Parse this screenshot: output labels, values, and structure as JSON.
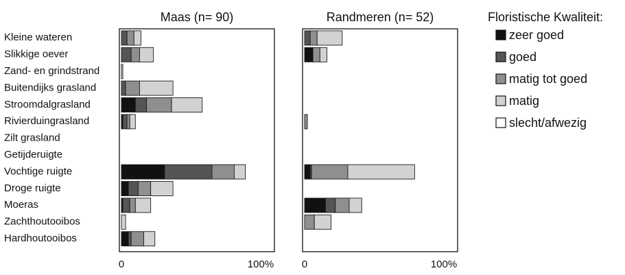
{
  "chart_data": {
    "type": "bar",
    "orientation": "horizontal",
    "stacked": true,
    "categories": [
      "Kleine wateren",
      "Slikkige oever",
      "Zand- en grindstrand",
      "Buitendijks grasland",
      "Stroomdalgrasland",
      "Rivierduingrasland",
      "Zilt grasland",
      "Getijderuigte",
      "Vochtige ruigte",
      "Droge ruigte",
      "Moeras",
      "Zachthoutooibos",
      "Hardhoutooibos"
    ],
    "legend": {
      "title": "Floristische Kwaliteit:",
      "placement": "right",
      "entries": [
        {
          "label": "zeer goed",
          "color": "#111111"
        },
        {
          "label": "goed",
          "color": "#555555"
        },
        {
          "label": "matig tot goed",
          "color": "#8f8f8f"
        },
        {
          "label": "matig",
          "color": "#d2d2d2"
        },
        {
          "label": "slecht/afwezig",
          "color": "#ffffff"
        }
      ]
    },
    "panels": [
      {
        "title": "Maas (n= 90)",
        "xlim": [
          0,
          100
        ],
        "xticks": [
          "0",
          "100%"
        ],
        "values": [
          [
            0,
            4,
            5,
            5,
            0
          ],
          [
            0,
            7,
            6,
            10,
            0
          ],
          [
            0,
            0,
            0,
            1,
            0
          ],
          [
            0,
            3,
            10,
            24,
            0
          ],
          [
            10,
            8,
            18,
            22,
            0
          ],
          [
            1,
            3,
            2,
            4,
            0
          ],
          [
            0,
            0,
            0,
            0,
            0
          ],
          [
            0,
            0,
            0,
            0,
            0
          ],
          [
            31,
            34,
            16,
            8,
            0
          ],
          [
            5,
            7,
            9,
            16,
            0
          ],
          [
            1,
            5,
            4,
            11,
            0
          ],
          [
            0,
            0,
            0,
            3,
            0
          ],
          [
            5,
            2,
            9,
            8,
            0
          ]
        ]
      },
      {
        "title": "Randmeren (n= 52)",
        "xlim": [
          0,
          100
        ],
        "xticks": [
          "0",
          "100%"
        ],
        "values": [
          [
            0,
            4,
            5,
            18,
            0
          ],
          [
            6,
            0,
            5,
            5,
            0
          ],
          [
            0,
            0,
            0,
            0,
            0
          ],
          [
            0,
            0,
            0,
            0,
            0
          ],
          [
            0,
            0,
            0,
            0,
            0
          ],
          [
            0,
            0,
            2,
            0,
            0
          ],
          [
            0,
            0,
            0,
            0,
            0
          ],
          [
            0,
            0,
            0,
            0,
            0
          ],
          [
            4,
            1,
            26,
            48,
            0
          ],
          [
            0,
            0,
            0,
            0,
            0
          ],
          [
            15,
            7,
            10,
            9,
            0
          ],
          [
            0,
            0,
            7,
            12,
            0
          ],
          [
            0,
            0,
            0,
            0,
            0
          ]
        ]
      }
    ]
  }
}
